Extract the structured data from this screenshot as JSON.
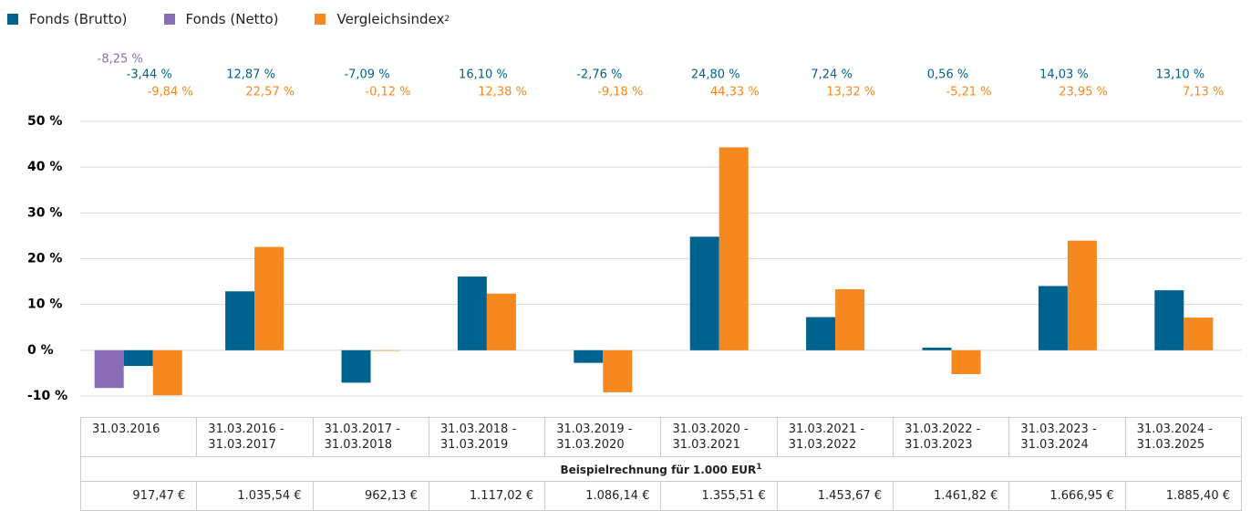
{
  "chart_data": {
    "type": "bar",
    "categories": [
      "31.03.2016",
      "31.03.2016 - 31.03.2017",
      "31.03.2017 - 31.03.2018",
      "31.03.2018 - 31.03.2019",
      "31.03.2019 - 31.03.2020",
      "31.03.2020 - 31.03.2021",
      "31.03.2021 - 31.03.2022",
      "31.03.2022 - 31.03.2023",
      "31.03.2023 - 31.03.2024",
      "31.03.2024 - 31.03.2025"
    ],
    "series": [
      {
        "name": "Fonds (Netto)",
        "color": "#8a6db5",
        "values": [
          -8.25,
          null,
          null,
          null,
          null,
          null,
          null,
          null,
          null,
          null
        ],
        "value_labels": [
          "-8,25 %",
          null,
          null,
          null,
          null,
          null,
          null,
          null,
          null,
          null
        ]
      },
      {
        "name": "Fonds (Brutto)",
        "color": "#00628f",
        "values": [
          -3.44,
          12.87,
          -7.09,
          16.1,
          -2.76,
          24.8,
          7.24,
          0.56,
          14.03,
          13.1
        ],
        "value_labels": [
          "-3,44 %",
          "12,87 %",
          "-7,09 %",
          "16,10 %",
          "-2,76 %",
          "24,80 %",
          "7,24 %",
          "0,56 %",
          "14,03 %",
          "13,10 %"
        ]
      },
      {
        "name": "Vergleichsindex",
        "name_sup": "2",
        "color": "#f5891f",
        "values": [
          -9.84,
          22.57,
          -0.12,
          12.38,
          -9.18,
          44.33,
          13.32,
          -5.21,
          23.95,
          7.13
        ],
        "value_labels": [
          "-9,84 %",
          "22,57 %",
          "-0,12 %",
          "12,38 %",
          "-9,18 %",
          "44,33 %",
          "13,32 %",
          "-5,21 %",
          "23,95 %",
          "7,13 %"
        ]
      }
    ],
    "legend_order": [
      1,
      0,
      2
    ],
    "ylim": [
      -10,
      50
    ],
    "yticks": [
      {
        "value": -10,
        "label": "-10 %"
      },
      {
        "value": 0,
        "label": "0 %"
      },
      {
        "value": 10,
        "label": "10 %"
      },
      {
        "value": 20,
        "label": "20 %"
      },
      {
        "value": 30,
        "label": "30 %"
      },
      {
        "value": 40,
        "label": "40 %"
      },
      {
        "value": 50,
        "label": "50 %"
      }
    ],
    "grid": true
  },
  "table": {
    "caption": "Beispielrechnung für 1.000 EUR",
    "caption_sup": "1",
    "values": [
      "917,47 €",
      "1.035,54 €",
      "962,13 €",
      "1.117,02 €",
      "1.086,14 €",
      "1.355,51 €",
      "1.453,67 €",
      "1.461,82 €",
      "1.666,95 €",
      "1.885,40 €"
    ]
  }
}
